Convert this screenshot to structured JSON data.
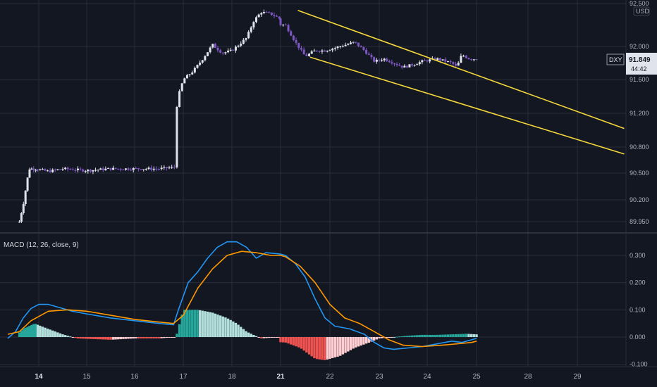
{
  "symbol": "DXY",
  "currency": "USD",
  "last_price": "91.849",
  "countdown": "44:42",
  "macd_label": "MACD (12, 26, close, 9)",
  "colors": {
    "background": "#131722",
    "grid": "#2a2e39",
    "up_candle": "#e0e3eb",
    "down_candle": "#7e57c2",
    "trendline": "#f5d83b",
    "macd_line": "#2196f3",
    "signal_line": "#ff9800",
    "hist_pos_strong": "#26a69a",
    "hist_pos_weak": "#b2dfdb",
    "hist_neg_strong": "#ef5350",
    "hist_neg_weak": "#ffcdd2",
    "axis_text": "#b2b5be",
    "price_tag_bg": "#e0e3eb",
    "price_tag_text": "#131722"
  },
  "chart_data": [
    {
      "type": "candlestick",
      "symbol": "DXY",
      "x_ticks": [
        "14",
        "15",
        "16",
        "17",
        "18",
        "21",
        "22",
        "23",
        "24",
        "25",
        "28",
        "29"
      ],
      "bold_x_ticks": [
        "14",
        "21"
      ],
      "y_ticks": [
        "92.500",
        "92.000",
        "91.600",
        "91.200",
        "90.800",
        "90.500",
        "90.200",
        "89.950"
      ],
      "ylim": [
        89.9,
        92.55
      ],
      "close_path": [
        [
          13.5,
          89.95
        ],
        [
          13.6,
          90.15
        ],
        [
          13.75,
          90.55
        ],
        [
          13.9,
          90.55
        ],
        [
          14.2,
          90.52
        ],
        [
          14.5,
          90.55
        ],
        [
          15.0,
          90.53
        ],
        [
          15.5,
          90.55
        ],
        [
          16.0,
          90.55
        ],
        [
          16.5,
          90.55
        ],
        [
          16.85,
          90.57
        ],
        [
          16.87,
          91.35
        ],
        [
          17.0,
          91.6
        ],
        [
          17.2,
          91.7
        ],
        [
          17.4,
          91.85
        ],
        [
          17.6,
          92.02
        ],
        [
          17.8,
          91.92
        ],
        [
          18.0,
          91.95
        ],
        [
          18.3,
          92.1
        ],
        [
          18.45,
          92.3
        ],
        [
          18.6,
          92.4
        ],
        [
          18.8,
          92.38
        ],
        [
          19.0,
          92.32
        ],
        [
          21.1,
          92.25
        ],
        [
          21.3,
          92.05
        ],
        [
          21.5,
          91.88
        ],
        [
          21.7,
          91.95
        ],
        [
          21.9,
          91.95
        ],
        [
          22.2,
          92.0
        ],
        [
          22.5,
          92.05
        ],
        [
          22.7,
          91.95
        ],
        [
          22.9,
          91.82
        ],
        [
          23.1,
          91.85
        ],
        [
          23.3,
          91.8
        ],
        [
          23.5,
          91.75
        ],
        [
          23.7,
          91.78
        ],
        [
          23.9,
          91.82
        ],
        [
          24.2,
          91.85
        ],
        [
          24.5,
          91.8
        ],
        [
          24.6,
          91.75
        ],
        [
          24.7,
          91.9
        ],
        [
          24.85,
          91.85
        ],
        [
          25.0,
          91.849
        ]
      ],
      "trendlines": [
        {
          "name": "upper",
          "from": [
            21.35,
            92.42
          ],
          "to": [
            29.95,
            91.02
          ]
        },
        {
          "name": "lower",
          "from": [
            21.6,
            91.87
          ],
          "to": [
            29.95,
            90.72
          ]
        }
      ]
    },
    {
      "type": "line",
      "title": "MACD (12, 26, close, 9)",
      "x_ticks": [
        "14",
        "15",
        "16",
        "17",
        "18",
        "21",
        "22",
        "23",
        "24",
        "25",
        "28",
        "29"
      ],
      "y_ticks": [
        "0.300",
        "0.200",
        "0.100",
        "0.000",
        "-0.100"
      ],
      "ylim": [
        -0.115,
        0.36
      ],
      "series": [
        {
          "name": "MACD",
          "points": [
            [
              13.2,
              -0.005
            ],
            [
              13.4,
              0.02
            ],
            [
              13.6,
              0.07
            ],
            [
              13.8,
              0.105
            ],
            [
              14.0,
              0.12
            ],
            [
              14.2,
              0.12
            ],
            [
              14.4,
              0.11
            ],
            [
              14.7,
              0.095
            ],
            [
              15.0,
              0.085
            ],
            [
              15.5,
              0.07
            ],
            [
              16.0,
              0.06
            ],
            [
              16.5,
              0.05
            ],
            [
              16.8,
              0.045
            ],
            [
              16.9,
              0.1
            ],
            [
              17.1,
              0.2
            ],
            [
              17.3,
              0.24
            ],
            [
              17.5,
              0.29
            ],
            [
              17.7,
              0.33
            ],
            [
              17.9,
              0.35
            ],
            [
              18.1,
              0.35
            ],
            [
              18.3,
              0.33
            ],
            [
              18.5,
              0.29
            ],
            [
              18.7,
              0.31
            ],
            [
              19.0,
              0.305
            ],
            [
              21.1,
              0.3
            ],
            [
              21.3,
              0.27
            ],
            [
              21.5,
              0.22
            ],
            [
              21.7,
              0.14
            ],
            [
              21.9,
              0.07
            ],
            [
              22.1,
              0.04
            ],
            [
              22.4,
              0.03
            ],
            [
              22.7,
              0.01
            ],
            [
              22.9,
              -0.02
            ],
            [
              23.1,
              -0.04
            ],
            [
              23.3,
              -0.045
            ],
            [
              23.6,
              -0.04
            ],
            [
              23.9,
              -0.035
            ],
            [
              24.2,
              -0.025
            ],
            [
              24.5,
              -0.015
            ],
            [
              24.7,
              -0.02
            ],
            [
              24.9,
              -0.01
            ],
            [
              25.0,
              -0.005
            ]
          ]
        },
        {
          "name": "Signal",
          "points": [
            [
              13.2,
              0.01
            ],
            [
              13.5,
              0.02
            ],
            [
              13.8,
              0.06
            ],
            [
              14.2,
              0.095
            ],
            [
              14.6,
              0.1
            ],
            [
              15.0,
              0.095
            ],
            [
              15.5,
              0.08
            ],
            [
              16.0,
              0.065
            ],
            [
              16.5,
              0.055
            ],
            [
              16.8,
              0.05
            ],
            [
              17.0,
              0.08
            ],
            [
              17.3,
              0.18
            ],
            [
              17.6,
              0.25
            ],
            [
              17.9,
              0.3
            ],
            [
              18.2,
              0.315
            ],
            [
              18.5,
              0.31
            ],
            [
              18.8,
              0.3
            ],
            [
              19.0,
              0.3
            ],
            [
              21.1,
              0.295
            ],
            [
              21.4,
              0.26
            ],
            [
              21.7,
              0.2
            ],
            [
              22.0,
              0.12
            ],
            [
              22.3,
              0.07
            ],
            [
              22.6,
              0.05
            ],
            [
              22.9,
              0.02
            ],
            [
              23.2,
              -0.01
            ],
            [
              23.5,
              -0.03
            ],
            [
              23.9,
              -0.035
            ],
            [
              24.3,
              -0.03
            ],
            [
              24.6,
              -0.025
            ],
            [
              24.9,
              -0.02
            ],
            [
              25.0,
              -0.015
            ]
          ]
        }
      ],
      "histogram_envelope": [
        [
          13.3,
          -0.01
        ],
        [
          13.6,
          0.03
        ],
        [
          13.9,
          0.05
        ],
        [
          14.2,
          0.03
        ],
        [
          14.5,
          0.01
        ],
        [
          14.8,
          -0.005
        ],
        [
          15.5,
          -0.01
        ],
        [
          16.0,
          -0.005
        ],
        [
          16.5,
          -0.005
        ],
        [
          16.85,
          0.0
        ],
        [
          17.0,
          0.1
        ],
        [
          17.3,
          0.1
        ],
        [
          17.6,
          0.09
        ],
        [
          17.9,
          0.07
        ],
        [
          18.1,
          0.05
        ],
        [
          18.3,
          0.02
        ],
        [
          18.6,
          -0.005
        ],
        [
          19.0,
          0.0
        ],
        [
          21.1,
          -0.02
        ],
        [
          21.4,
          -0.04
        ],
        [
          21.7,
          -0.08
        ],
        [
          21.9,
          -0.085
        ],
        [
          22.2,
          -0.07
        ],
        [
          22.5,
          -0.04
        ],
        [
          22.8,
          -0.02
        ],
        [
          23.0,
          -0.005
        ],
        [
          23.3,
          0.0
        ],
        [
          23.6,
          0.005
        ],
        [
          23.9,
          0.008
        ],
        [
          24.2,
          0.008
        ],
        [
          24.5,
          0.01
        ],
        [
          24.8,
          0.012
        ],
        [
          25.0,
          0.01
        ]
      ]
    }
  ]
}
